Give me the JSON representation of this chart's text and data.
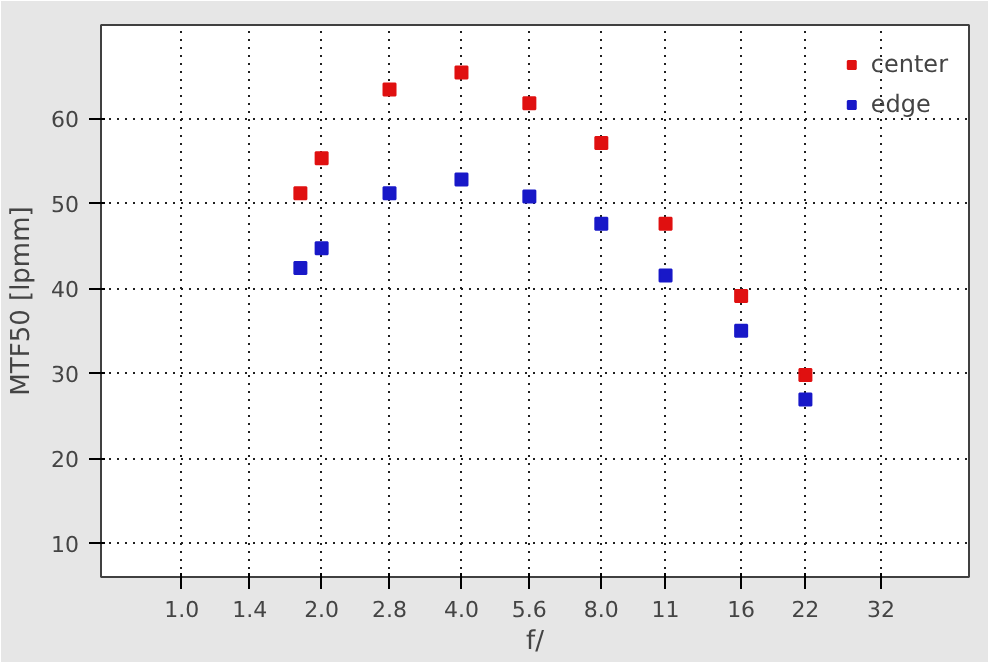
{
  "chart_data": {
    "type": "scatter",
    "xlabel": "f/",
    "ylabel": "MTF50 [lpmm]",
    "x": [
      1.8,
      2.0,
      2.8,
      4.0,
      5.6,
      8.0,
      11,
      16,
      22
    ],
    "series": [
      {
        "name": "center",
        "color": "#e01010",
        "values": [
          51.2,
          55.3,
          63.4,
          65.4,
          61.8,
          57.1,
          47.6,
          39.1,
          29.8
        ]
      },
      {
        "name": "edge",
        "color": "#1818c8",
        "values": [
          42.4,
          44.7,
          51.2,
          52.8,
          50.8,
          47.6,
          41.5,
          35.0,
          26.9
        ]
      }
    ],
    "log": "x",
    "xlim": [
      0.67,
      49.5
    ],
    "ylim": [
      6,
      71
    ],
    "xticks": [
      {
        "value": 1.0,
        "label": "1.0"
      },
      1.4,
      {
        "value": 2.0,
        "label": "2.0"
      },
      2.8,
      {
        "value": 4.0,
        "label": "4.0"
      },
      5.6,
      {
        "value": 8.0,
        "label": "8.0"
      },
      11,
      16,
      22,
      32
    ],
    "yticks": [
      10,
      20,
      30,
      40,
      50,
      60
    ],
    "grid": true,
    "legend": "top right",
    "marker": "square"
  }
}
